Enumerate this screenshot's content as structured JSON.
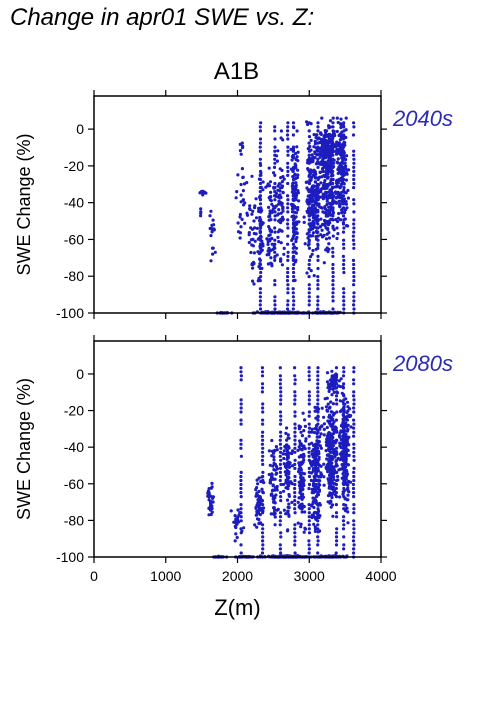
{
  "page_title": "Change in apr01 SWE vs. Z:",
  "scenario": "A1B",
  "colors": {
    "points": "#1c1cbf",
    "axis": "#000000",
    "period_label": "#2b2bb5"
  },
  "chart_data": [
    {
      "type": "scatter",
      "period_label": "2040s",
      "ylabel": "SWE Change (%)",
      "xlim": [
        0,
        4000
      ],
      "ylim": [
        -100,
        18
      ],
      "yticks": [
        0,
        -20,
        -40,
        -60,
        -80,
        -100
      ],
      "clusters": [
        {
          "x": 1520,
          "y": -35,
          "n": 10,
          "xs": 70,
          "ys": 3
        },
        {
          "x": 1480,
          "y": -45,
          "n": 4,
          "xs": 20,
          "ys": 4
        },
        {
          "x": 1650,
          "y": -55,
          "n": 18,
          "xs": 60,
          "ys": 22
        },
        {
          "x": 1800,
          "y": -100,
          "n": 20,
          "xs": 200,
          "ys": 0.5
        },
        {
          "x": 2050,
          "y": -40,
          "n": 26,
          "xs": 150,
          "ys": 35
        },
        {
          "x": 2050,
          "y": -10,
          "n": 6,
          "xs": 40,
          "ys": 6
        },
        {
          "x": 2200,
          "y": -60,
          "n": 35,
          "xs": 100,
          "ys": 40
        },
        {
          "x": 2320,
          "y": -50,
          "n": 55,
          "xs": 60,
          "ys": 45
        },
        {
          "x": 2450,
          "y": -45,
          "n": 60,
          "xs": 90,
          "ys": 45
        },
        {
          "x": 2600,
          "y": -40,
          "n": 70,
          "xs": 80,
          "ys": 50
        },
        {
          "x": 2800,
          "y": -40,
          "n": 110,
          "xs": 80,
          "ys": 50
        },
        {
          "x": 3050,
          "y": -35,
          "n": 200,
          "xs": 150,
          "ys": 50
        },
        {
          "x": 3250,
          "y": -30,
          "n": 230,
          "xs": 150,
          "ys": 50
        },
        {
          "x": 3450,
          "y": -25,
          "n": 180,
          "xs": 130,
          "ys": 45
        },
        {
          "x": 3250,
          "y": -10,
          "n": 130,
          "xs": 220,
          "ys": 12
        },
        {
          "x": 2600,
          "y": -100,
          "n": 120,
          "xs": 500,
          "ys": 1
        },
        {
          "x": 3200,
          "y": -100,
          "n": 60,
          "xs": 350,
          "ys": 1
        }
      ],
      "vlines": [
        2320,
        2520,
        2700,
        2780,
        3000,
        3120,
        3330,
        3480,
        3620
      ]
    },
    {
      "type": "scatter",
      "period_label": "2080s",
      "ylabel": "SWE Change (%)",
      "xlabel": "Z(m)",
      "xlim": [
        0,
        4000
      ],
      "xticks": [
        0,
        1000,
        2000,
        3000,
        4000
      ],
      "ylim": [
        -100,
        18
      ],
      "yticks": [
        0,
        -20,
        -40,
        -60,
        -80,
        -100
      ],
      "clusters": [
        {
          "x": 1620,
          "y": -70,
          "n": 30,
          "xs": 70,
          "ys": 14
        },
        {
          "x": 1750,
          "y": -100,
          "n": 20,
          "xs": 120,
          "ys": 0.5
        },
        {
          "x": 2000,
          "y": -80,
          "n": 25,
          "xs": 120,
          "ys": 12
        },
        {
          "x": 2100,
          "y": -100,
          "n": 40,
          "xs": 150,
          "ys": 0.5
        },
        {
          "x": 2300,
          "y": -70,
          "n": 60,
          "xs": 100,
          "ys": 25
        },
        {
          "x": 2500,
          "y": -60,
          "n": 70,
          "xs": 90,
          "ys": 30
        },
        {
          "x": 2700,
          "y": -55,
          "n": 90,
          "xs": 80,
          "ys": 35
        },
        {
          "x": 2900,
          "y": -55,
          "n": 110,
          "xs": 80,
          "ys": 40
        },
        {
          "x": 3100,
          "y": -50,
          "n": 180,
          "xs": 120,
          "ys": 45
        },
        {
          "x": 3300,
          "y": -45,
          "n": 230,
          "xs": 120,
          "ys": 45
        },
        {
          "x": 3500,
          "y": -40,
          "n": 200,
          "xs": 100,
          "ys": 45
        },
        {
          "x": 3350,
          "y": -5,
          "n": 60,
          "xs": 150,
          "ys": 8
        },
        {
          "x": 2700,
          "y": -100,
          "n": 150,
          "xs": 500,
          "ys": 1
        },
        {
          "x": 3300,
          "y": -100,
          "n": 60,
          "xs": 300,
          "ys": 1
        }
      ],
      "vlines": [
        2050,
        2350,
        2600,
        2800,
        3000,
        3120,
        3380,
        3480,
        3620
      ]
    }
  ]
}
